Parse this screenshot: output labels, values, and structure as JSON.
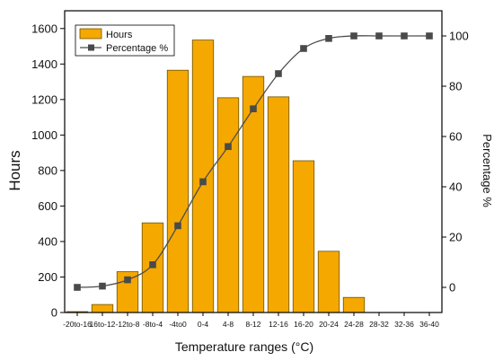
{
  "chart_data": {
    "type": "bar",
    "title": "",
    "xlabel": "Temperature ranges (°C)",
    "ylabel": "Hours",
    "y2label": "Percentage %",
    "categories": [
      "-20to-16",
      "16to-12",
      "-12to-8",
      "-8to-4",
      "-4to0",
      "0-4",
      "4-8",
      "8-12",
      "12-16",
      "16-20",
      "20-24",
      "24-28",
      "28-32",
      "32-36",
      "36-40"
    ],
    "ylim": [
      0,
      1700
    ],
    "yticks": [
      0,
      200,
      400,
      600,
      800,
      1000,
      1200,
      1400,
      1600
    ],
    "y2lim": [
      -10,
      110
    ],
    "y2ticks": [
      0,
      20,
      40,
      60,
      80,
      100
    ],
    "grid": false,
    "legend_position": "top-left",
    "series": [
      {
        "name": "Hours",
        "axis": "left",
        "type": "bar",
        "color": "#f5a800",
        "values": [
          5,
          45,
          230,
          505,
          1365,
          1535,
          1210,
          1330,
          1215,
          855,
          345,
          85,
          0,
          0,
          0
        ]
      },
      {
        "name": "Percentage %",
        "axis": "right",
        "type": "line",
        "color": "#555555",
        "marker": "square",
        "values": [
          0,
          0.5,
          3,
          9,
          24.5,
          42,
          56,
          71,
          85,
          95,
          99,
          100,
          100,
          100,
          100
        ]
      }
    ]
  }
}
